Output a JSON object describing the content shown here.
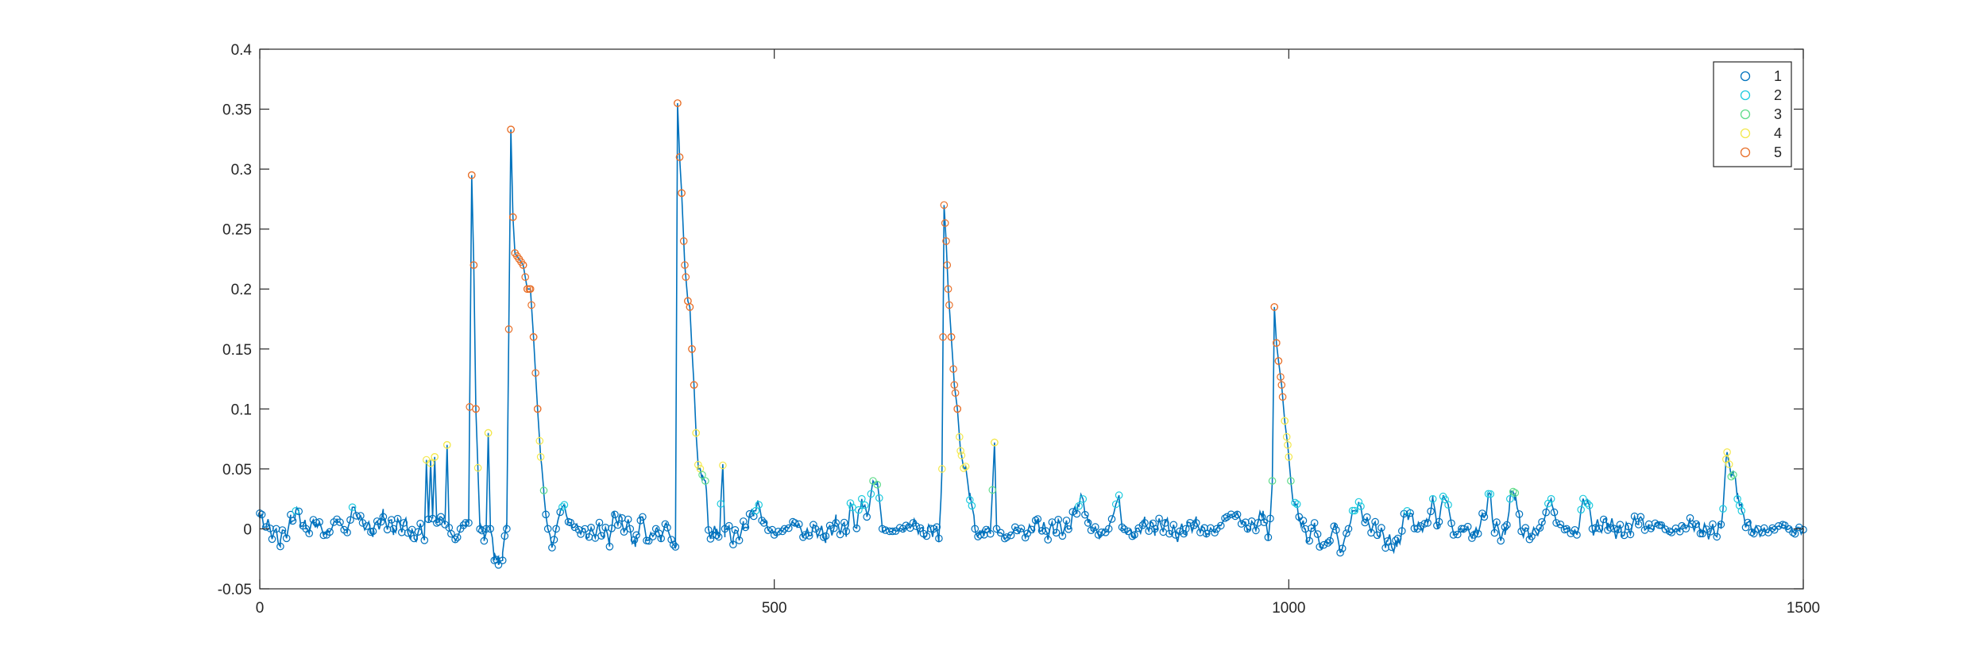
{
  "chart_data": {
    "type": "line",
    "title": "",
    "xlabel": "",
    "ylabel": "",
    "xlim": [
      0,
      1500
    ],
    "ylim": [
      -0.05,
      0.4
    ],
    "xticks": [
      0,
      500,
      1000,
      1500
    ],
    "xtick_labels": [
      "0",
      "500",
      "1000",
      "1500"
    ],
    "yticks": [
      -0.05,
      0,
      0.05,
      0.1,
      0.15,
      0.2,
      0.25,
      0.3,
      0.35,
      0.4
    ],
    "ytick_labels": [
      "-0.05",
      "0",
      "0.05",
      "0.1",
      "0.15",
      "0.2",
      "0.25",
      "0.3",
      "0.35",
      "0.4"
    ],
    "grid": false,
    "line_color": "#0072bd",
    "legend": {
      "placement": "top-right",
      "entries": [
        {
          "label": "1",
          "color": "#0072bd"
        },
        {
          "label": "2",
          "color": "#1ecbde"
        },
        {
          "label": "3",
          "color": "#5fdc8a"
        },
        {
          "label": "4",
          "color": "#f3e84e"
        },
        {
          "label": "5",
          "color": "#e8702a"
        }
      ]
    },
    "class_thresholds": [
      0.015,
      0.03,
      0.05,
      0.1
    ],
    "anchors": [
      [
        0,
        0.01
      ],
      [
        10,
        0.0
      ],
      [
        20,
        -0.01
      ],
      [
        30,
        0.005
      ],
      [
        35,
        0.015
      ],
      [
        45,
        0.0
      ],
      [
        55,
        0.005
      ],
      [
        65,
        -0.005
      ],
      [
        75,
        0.008
      ],
      [
        85,
        -0.003
      ],
      [
        90,
        0.018
      ],
      [
        100,
        0.005
      ],
      [
        110,
        -0.002
      ],
      [
        120,
        0.01
      ],
      [
        130,
        0.0
      ],
      [
        140,
        0.005
      ],
      [
        150,
        -0.008
      ],
      [
        155,
        0.0
      ],
      [
        160,
        -0.005
      ],
      [
        162,
        0.055
      ],
      [
        164,
        0.005
      ],
      [
        166,
        0.058
      ],
      [
        168,
        0.01
      ],
      [
        170,
        0.06
      ],
      [
        172,
        0.005
      ],
      [
        175,
        0.01
      ],
      [
        180,
        0.005
      ],
      [
        182,
        0.07
      ],
      [
        184,
        0.0
      ],
      [
        190,
        -0.01
      ],
      [
        195,
        0.0
      ],
      [
        200,
        0.005
      ],
      [
        203,
        0.005
      ],
      [
        206,
        0.295
      ],
      [
        208,
        0.22
      ],
      [
        210,
        0.1
      ],
      [
        212,
        0.05
      ],
      [
        214,
        0.005
      ],
      [
        218,
        -0.01
      ],
      [
        220,
        0.0
      ],
      [
        222,
        0.08
      ],
      [
        224,
        0.0
      ],
      [
        228,
        -0.02
      ],
      [
        232,
        -0.03
      ],
      [
        236,
        -0.02
      ],
      [
        240,
        0.0
      ],
      [
        244,
        0.333
      ],
      [
        246,
        0.26
      ],
      [
        248,
        0.23
      ],
      [
        252,
        0.225
      ],
      [
        256,
        0.22
      ],
      [
        260,
        0.2
      ],
      [
        263,
        0.2
      ],
      [
        266,
        0.16
      ],
      [
        270,
        0.1
      ],
      [
        273,
        0.06
      ],
      [
        276,
        0.03
      ],
      [
        280,
        0.0
      ],
      [
        284,
        -0.015
      ],
      [
        288,
        0.0
      ],
      [
        292,
        0.015
      ],
      [
        296,
        0.02
      ],
      [
        300,
        0.005
      ],
      [
        310,
        0.0
      ],
      [
        320,
        -0.005
      ],
      [
        330,
        0.0
      ],
      [
        340,
        -0.008
      ],
      [
        345,
        0.012
      ],
      [
        352,
        0.005
      ],
      [
        360,
        0.0
      ],
      [
        365,
        -0.015
      ],
      [
        370,
        0.01
      ],
      [
        378,
        -0.01
      ],
      [
        385,
        0.0
      ],
      [
        390,
        -0.008
      ],
      [
        395,
        0.005
      ],
      [
        400,
        -0.01
      ],
      [
        404,
        -0.015
      ],
      [
        406,
        0.355
      ],
      [
        408,
        0.31
      ],
      [
        410,
        0.28
      ],
      [
        413,
        0.22
      ],
      [
        416,
        0.19
      ],
      [
        418,
        0.185
      ],
      [
        420,
        0.15
      ],
      [
        422,
        0.12
      ],
      [
        424,
        0.08
      ],
      [
        426,
        0.05
      ],
      [
        430,
        0.045
      ],
      [
        433,
        0.04
      ],
      [
        436,
        0.0
      ],
      [
        440,
        -0.005
      ],
      [
        444,
        0.0
      ],
      [
        447,
        -0.005
      ],
      [
        450,
        0.053
      ],
      [
        452,
        0.0
      ],
      [
        460,
        -0.008
      ],
      [
        470,
        0.0
      ],
      [
        480,
        0.015
      ],
      [
        485,
        0.02
      ],
      [
        490,
        0.005
      ],
      [
        500,
        -0.005
      ],
      [
        510,
        0.0
      ],
      [
        520,
        0.005
      ],
      [
        530,
        -0.005
      ],
      [
        540,
        0.0
      ],
      [
        550,
        -0.006
      ],
      [
        560,
        0.005
      ],
      [
        570,
        -0.002
      ],
      [
        575,
        0.02
      ],
      [
        580,
        0.0
      ],
      [
        585,
        0.025
      ],
      [
        590,
        0.01
      ],
      [
        595,
        0.035
      ],
      [
        600,
        0.04
      ],
      [
        605,
        0.0
      ],
      [
        615,
        -0.002
      ],
      [
        625,
        0.0
      ],
      [
        635,
        0.005
      ],
      [
        645,
        -0.004
      ],
      [
        655,
        0.0
      ],
      [
        660,
        -0.008
      ],
      [
        663,
        0.05
      ],
      [
        665,
        0.27
      ],
      [
        667,
        0.24
      ],
      [
        669,
        0.2
      ],
      [
        672,
        0.16
      ],
      [
        675,
        0.12
      ],
      [
        678,
        0.1
      ],
      [
        681,
        0.065
      ],
      [
        685,
        0.05
      ],
      [
        690,
        0.03
      ],
      [
        695,
        0.0
      ],
      [
        700,
        -0.005
      ],
      [
        705,
        0.0
      ],
      [
        710,
        -0.003
      ],
      [
        714,
        0.072
      ],
      [
        716,
        0.0
      ],
      [
        725,
        -0.008
      ],
      [
        735,
        0.0
      ],
      [
        745,
        -0.004
      ],
      [
        755,
        0.005
      ],
      [
        765,
        -0.003
      ],
      [
        775,
        0.002
      ],
      [
        785,
        0.0
      ],
      [
        795,
        0.02
      ],
      [
        800,
        0.025
      ],
      [
        805,
        0.005
      ],
      [
        815,
        -0.005
      ],
      [
        825,
        0.0
      ],
      [
        835,
        0.028
      ],
      [
        838,
        0.0
      ],
      [
        850,
        -0.005
      ],
      [
        860,
        0.005
      ],
      [
        870,
        0.0
      ],
      [
        880,
        0.005
      ],
      [
        890,
        -0.005
      ],
      [
        900,
        0.0
      ],
      [
        910,
        0.005
      ],
      [
        920,
        -0.004
      ],
      [
        930,
        0.0
      ],
      [
        940,
        0.01
      ],
      [
        950,
        0.012
      ],
      [
        960,
        0.0
      ],
      [
        970,
        0.005
      ],
      [
        975,
        0.015
      ],
      [
        980,
        -0.01
      ],
      [
        984,
        0.04
      ],
      [
        986,
        0.185
      ],
      [
        988,
        0.155
      ],
      [
        990,
        0.14
      ],
      [
        993,
        0.12
      ],
      [
        996,
        0.09
      ],
      [
        999,
        0.07
      ],
      [
        1002,
        0.04
      ],
      [
        1006,
        0.02
      ],
      [
        1010,
        0.01
      ],
      [
        1015,
        0.0
      ],
      [
        1020,
        -0.01
      ],
      [
        1025,
        0.005
      ],
      [
        1030,
        -0.015
      ],
      [
        1040,
        -0.01
      ],
      [
        1045,
        0.005
      ],
      [
        1050,
        -0.02
      ],
      [
        1058,
        0.0
      ],
      [
        1063,
        0.015
      ],
      [
        1068,
        0.02
      ],
      [
        1075,
        0.005
      ],
      [
        1085,
        0.0
      ],
      [
        1095,
        -0.01
      ],
      [
        1105,
        -0.015
      ],
      [
        1110,
        0.0
      ],
      [
        1115,
        0.015
      ],
      [
        1125,
        0.0
      ],
      [
        1135,
        0.005
      ],
      [
        1140,
        0.025
      ],
      [
        1145,
        0.0
      ],
      [
        1150,
        0.028
      ],
      [
        1155,
        0.02
      ],
      [
        1160,
        -0.005
      ],
      [
        1170,
        0.0
      ],
      [
        1180,
        -0.005
      ],
      [
        1190,
        0.01
      ],
      [
        1195,
        0.03
      ],
      [
        1200,
        0.0
      ],
      [
        1210,
        -0.005
      ],
      [
        1215,
        0.025
      ],
      [
        1220,
        0.03
      ],
      [
        1225,
        0.0
      ],
      [
        1235,
        -0.005
      ],
      [
        1245,
        0.0
      ],
      [
        1250,
        0.015
      ],
      [
        1255,
        0.025
      ],
      [
        1260,
        0.005
      ],
      [
        1270,
        0.0
      ],
      [
        1280,
        -0.005
      ],
      [
        1285,
        0.02
      ],
      [
        1290,
        0.025
      ],
      [
        1295,
        0.0
      ],
      [
        1310,
        0.005
      ],
      [
        1320,
        -0.003
      ],
      [
        1330,
        0.0
      ],
      [
        1340,
        0.008
      ],
      [
        1350,
        0.0
      ],
      [
        1360,
        0.005
      ],
      [
        1370,
        -0.003
      ],
      [
        1380,
        0.0
      ],
      [
        1390,
        0.005
      ],
      [
        1400,
        0.0
      ],
      [
        1410,
        -0.003
      ],
      [
        1420,
        0.0
      ],
      [
        1425,
        0.058
      ],
      [
        1428,
        0.055
      ],
      [
        1432,
        0.045
      ],
      [
        1436,
        0.03
      ],
      [
        1440,
        0.015
      ],
      [
        1445,
        0.005
      ],
      [
        1450,
        0.0
      ],
      [
        1460,
        -0.003
      ],
      [
        1470,
        0.0
      ],
      [
        1480,
        0.003
      ],
      [
        1490,
        -0.002
      ],
      [
        1500,
        0.0
      ]
    ]
  }
}
